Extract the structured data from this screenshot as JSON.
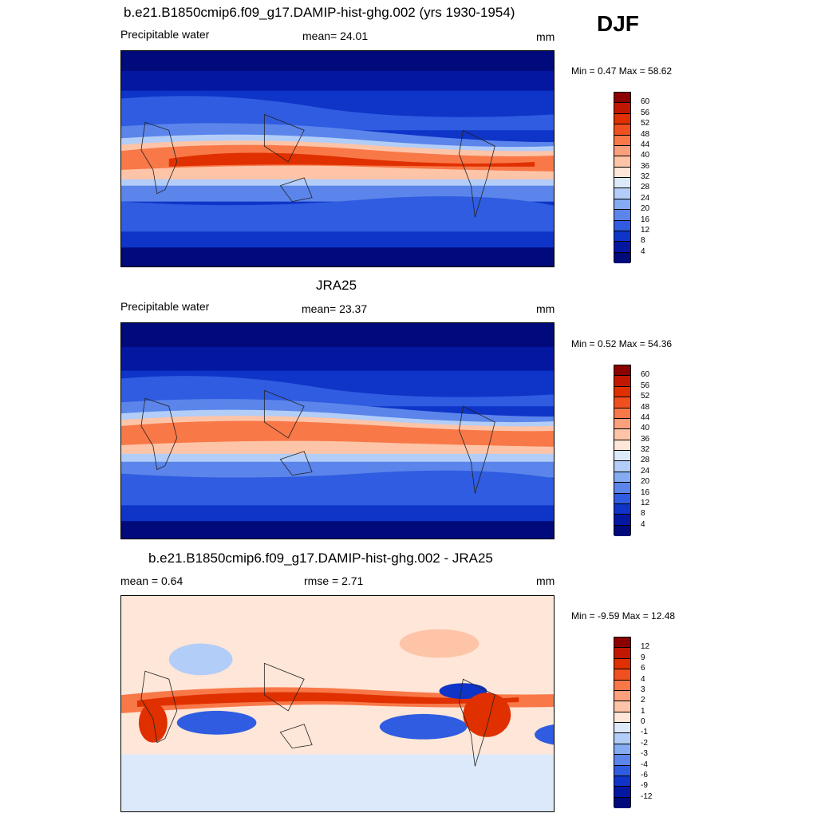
{
  "season": "DJF",
  "panels": [
    {
      "title": "b.e21.B1850cmip6.f09_g17.DAMIP-hist-ghg.002 (yrs 1930-1954)",
      "left_label": "Precipitable water",
      "center_label": "mean=  24.01",
      "units": "mm",
      "minmax": "Min =   0.47 Max =  58.62",
      "levels": [
        "60",
        "56",
        "52",
        "48",
        "44",
        "40",
        "36",
        "32",
        "28",
        "24",
        "20",
        "16",
        "12",
        "8",
        "4"
      ],
      "colors": [
        "#8b0000",
        "#c01800",
        "#e03000",
        "#f05020",
        "#f87848",
        "#fba07c",
        "#fdc4a8",
        "#fee6d8",
        "#dce9fb",
        "#b2cdf7",
        "#85abf2",
        "#5b85ea",
        "#2f5ce0",
        "#0e34c8",
        "#0417a0",
        "#000a7a"
      ]
    },
    {
      "title": "JRA25",
      "left_label": "Precipitable water",
      "center_label": "mean=  23.37",
      "units": "mm",
      "minmax": "Min =   0.52 Max =  54.36",
      "levels": [
        "60",
        "56",
        "52",
        "48",
        "44",
        "40",
        "36",
        "32",
        "28",
        "24",
        "20",
        "16",
        "12",
        "8",
        "4"
      ],
      "colors": [
        "#8b0000",
        "#c01800",
        "#e03000",
        "#f05020",
        "#f87848",
        "#fba07c",
        "#fdc4a8",
        "#fee6d8",
        "#dce9fb",
        "#b2cdf7",
        "#85abf2",
        "#5b85ea",
        "#2f5ce0",
        "#0e34c8",
        "#0417a0",
        "#000a7a"
      ]
    },
    {
      "title": "b.e21.B1850cmip6.f09_g17.DAMIP-hist-ghg.002 - JRA25",
      "left_label": "mean =   0.64",
      "center_label": "rmse =   2.71",
      "units": "mm",
      "minmax": "Min =  -9.59 Max =  12.48",
      "levels": [
        "12",
        "9",
        "6",
        "4",
        "3",
        "2",
        "1",
        "0",
        "-1",
        "-2",
        "-3",
        "-4",
        "-6",
        "-9",
        "-12"
      ],
      "colors": [
        "#8b0000",
        "#c01800",
        "#e03000",
        "#f05020",
        "#f87848",
        "#fba07c",
        "#fdc4a8",
        "#fee6d8",
        "#dce9fb",
        "#b2cdf7",
        "#85abf2",
        "#5b85ea",
        "#2f5ce0",
        "#0e34c8",
        "#0417a0",
        "#000a7a"
      ]
    }
  ]
}
